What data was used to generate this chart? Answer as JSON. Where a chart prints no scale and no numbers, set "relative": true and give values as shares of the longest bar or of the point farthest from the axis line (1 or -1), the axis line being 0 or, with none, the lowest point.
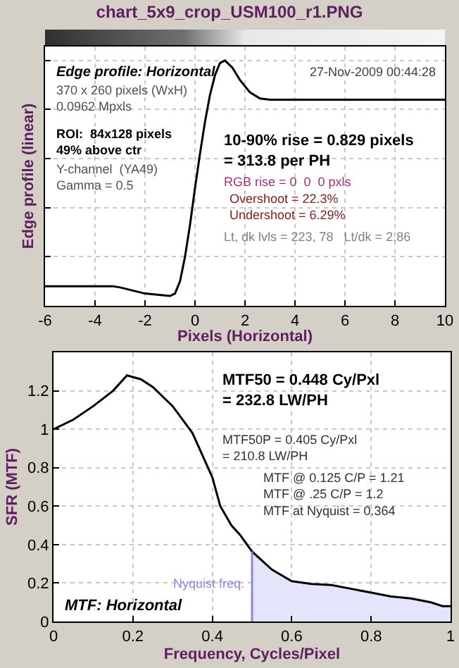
{
  "chart_data": [
    {
      "type": "line",
      "title": "chart_5x9_crop_USM100_r1.PNG",
      "xlabel": "Pixels (Horizontal)",
      "ylabel": "Edge profile (linear)",
      "relative": true,
      "grid": true,
      "marker": "none",
      "line_style": "solid",
      "xlim": [
        -6,
        10
      ],
      "xticks": [
        -6,
        -4,
        -2,
        0,
        2,
        4,
        6,
        8,
        10
      ],
      "annotations": [
        "Edge profile: Horizontal",
        "27-Nov-2009 00:44:28",
        "370 x 260 pixels (WxH)\n0.0962 Mpxls",
        "ROI:  84x128 pixels\n49% above ctr",
        "Y-channel  (YA49)\nGamma = 0.5",
        "10-90% rise = 0.829 pixels\n= 313.8 per PH",
        "RGB rise = 0  0  0 pxls",
        "Overshoot = 22.3%\nUndershoot = 6.29%",
        "Lt, dk lvls = 223, 78   Lt/dk = 2.86"
      ],
      "series": [
        {
          "color": "#000000",
          "x": [
            -6,
            -4,
            -3.3,
            -3,
            -2,
            -1.5,
            -1,
            -0.8,
            -0.6,
            -0.4,
            -0.2,
            0,
            0.2,
            0.4,
            0.6,
            0.8,
            1,
            1.2,
            1.5,
            1.8,
            2.2,
            2.6,
            3,
            10
          ],
          "values": [
            0.08,
            0.08,
            0.08,
            0.075,
            0.05,
            0.045,
            0.04,
            0.05,
            0.1,
            0.2,
            0.33,
            0.48,
            0.62,
            0.75,
            0.86,
            0.94,
            0.99,
            1,
            0.97,
            0.92,
            0.87,
            0.845,
            0.84,
            0.84
          ]
        }
      ]
    },
    {
      "type": "line",
      "xlabel": "Frequency, Cycles/Pixel",
      "ylabel": "SFR (MTF)",
      "grid": true,
      "marker": "none",
      "line_style": "solid",
      "xlim": [
        0,
        1
      ],
      "xticks": [
        0,
        0.2,
        0.4,
        0.6,
        0.8,
        1
      ],
      "ylim": [
        0,
        1.4
      ],
      "yticks": [
        0,
        0.2,
        0.4,
        0.6,
        0.8,
        1,
        1.2
      ],
      "ref_lines": [
        {
          "axis": "x",
          "value": 0.5,
          "label": "Nyquist freq.",
          "color": "#8888e8"
        }
      ],
      "annotations": [
        "MTF50 = 0.448 Cy/Pxl\n= 232.8 LW/PH",
        "MTF50P = 0.405 Cy/Pxl\n= 210.8 LW/PH",
        "MTF @ 0.125 C/P = 1.21\nMTF @ .25 C/P = 1.2\nMTF at Nyquist = 0.364",
        "MTF: Horizontal"
      ],
      "series": [
        {
          "type": "area",
          "color": "#e4e4fb",
          "x": [
            0.5,
            0.55,
            0.6,
            0.65,
            0.7,
            0.75,
            0.8,
            0.85,
            0.9,
            0.95,
            0.98,
            1
          ],
          "values": [
            0.364,
            0.27,
            0.21,
            0.195,
            0.19,
            0.17,
            0.15,
            0.13,
            0.12,
            0.1,
            0.08,
            0.08
          ]
        },
        {
          "color": "#000000",
          "x": [
            0,
            0.05,
            0.1,
            0.15,
            0.185,
            0.22,
            0.25,
            0.3,
            0.35,
            0.4,
            0.42,
            0.448,
            0.47,
            0.5,
            0.55,
            0.6,
            0.65,
            0.7,
            0.75,
            0.8,
            0.85,
            0.9,
            0.95,
            0.98,
            1
          ],
          "values": [
            1,
            1.05,
            1.12,
            1.2,
            1.28,
            1.26,
            1.22,
            1.12,
            0.98,
            0.75,
            0.6,
            0.5,
            0.45,
            0.364,
            0.27,
            0.21,
            0.195,
            0.19,
            0.17,
            0.15,
            0.13,
            0.12,
            0.1,
            0.08,
            0.08
          ]
        }
      ]
    }
  ]
}
